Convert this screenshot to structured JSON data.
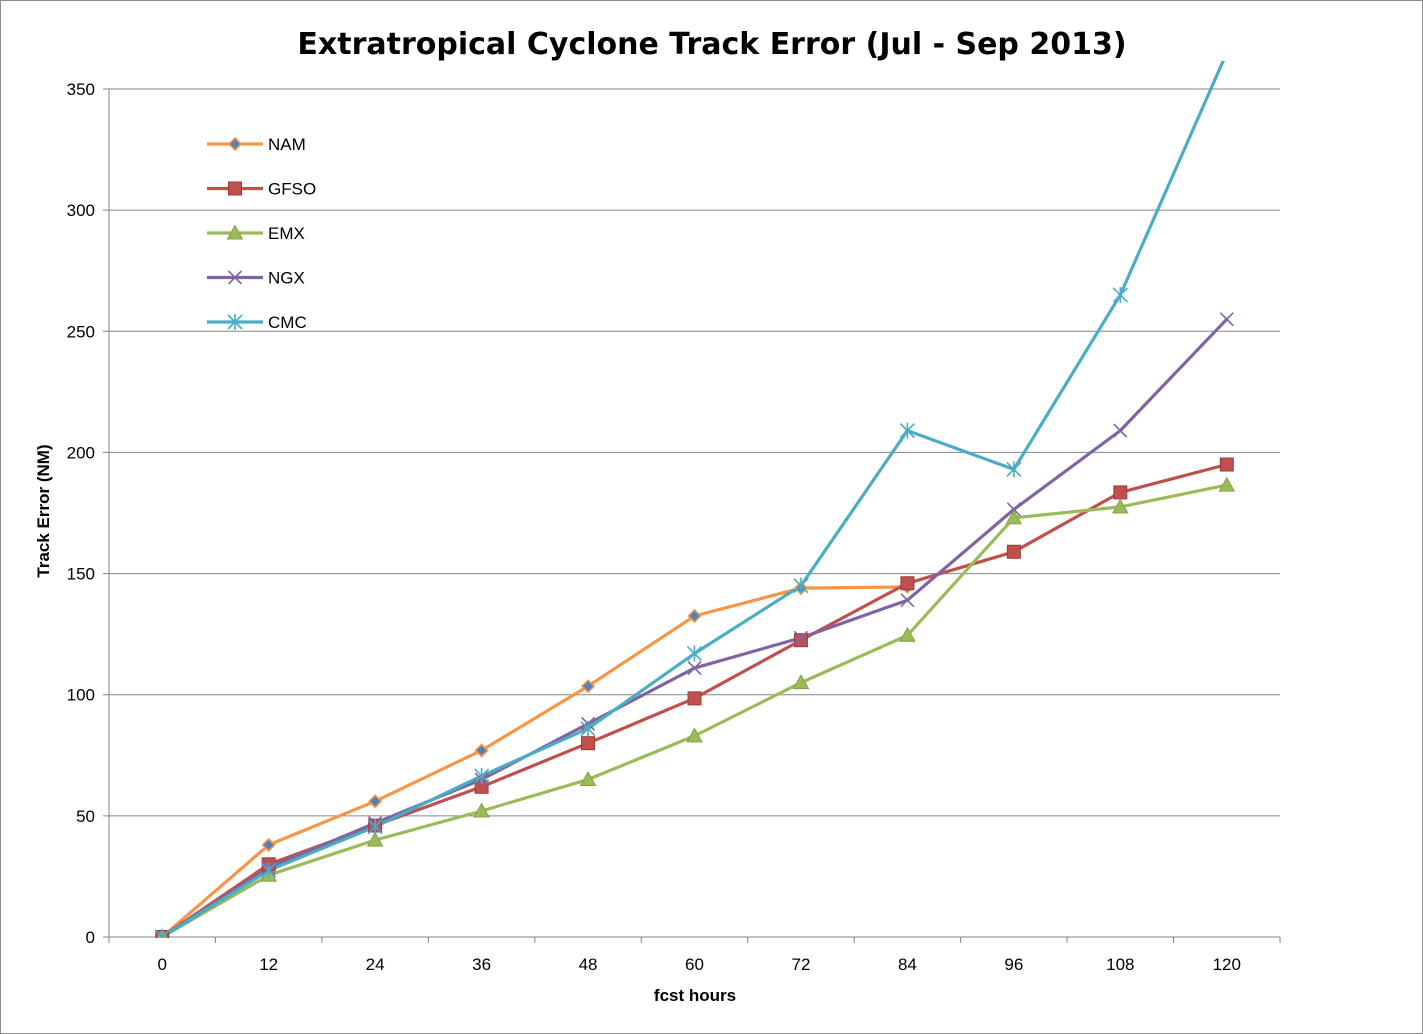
{
  "chart_data": {
    "type": "line",
    "title": "Extratropical Cyclone Track Error (Jul - Sep 2013)",
    "xlabel": "fcst hours",
    "ylabel": "Track Error  (NM)",
    "categories": [
      "0",
      "12",
      "24",
      "36",
      "48",
      "60",
      "72",
      "84",
      "96",
      "108",
      "120"
    ],
    "ylim": [
      0,
      350
    ],
    "yticks": [
      0,
      50,
      100,
      150,
      200,
      250,
      300,
      350
    ],
    "grid": "horizontal",
    "legend_position": "top-left inside",
    "series": [
      {
        "name": "NAM",
        "color": "#f79646",
        "marker_color": "#4f81bd",
        "marker": "diamond",
        "values": [
          0,
          38,
          56,
          77,
          103.5,
          132.5,
          144,
          144.5,
          null,
          null,
          null
        ]
      },
      {
        "name": "GFSO",
        "color": "#c0504d",
        "marker_color": "#c0504d",
        "marker": "square",
        "values": [
          0,
          30,
          46,
          62,
          80,
          98.5,
          122.5,
          146,
          159,
          183.5,
          195
        ]
      },
      {
        "name": "EMX",
        "color": "#9bbb59",
        "marker_color": "#9bbb59",
        "marker": "triangle",
        "values": [
          0,
          25.5,
          40,
          52,
          65,
          83,
          105,
          124.5,
          173,
          177.5,
          186.5
        ]
      },
      {
        "name": "NGX",
        "color": "#8064a2",
        "marker_color": "#8064a2",
        "marker": "x",
        "values": [
          0,
          28.5,
          47,
          65,
          88,
          111,
          123.5,
          139,
          176.5,
          209,
          255
        ]
      },
      {
        "name": "CMC",
        "color": "#4bacc6",
        "marker_color": "#4bacc6",
        "marker": "star",
        "values": [
          0,
          27.5,
          45.5,
          66.5,
          86,
          117,
          145,
          209,
          193,
          265,
          365
        ]
      }
    ]
  }
}
